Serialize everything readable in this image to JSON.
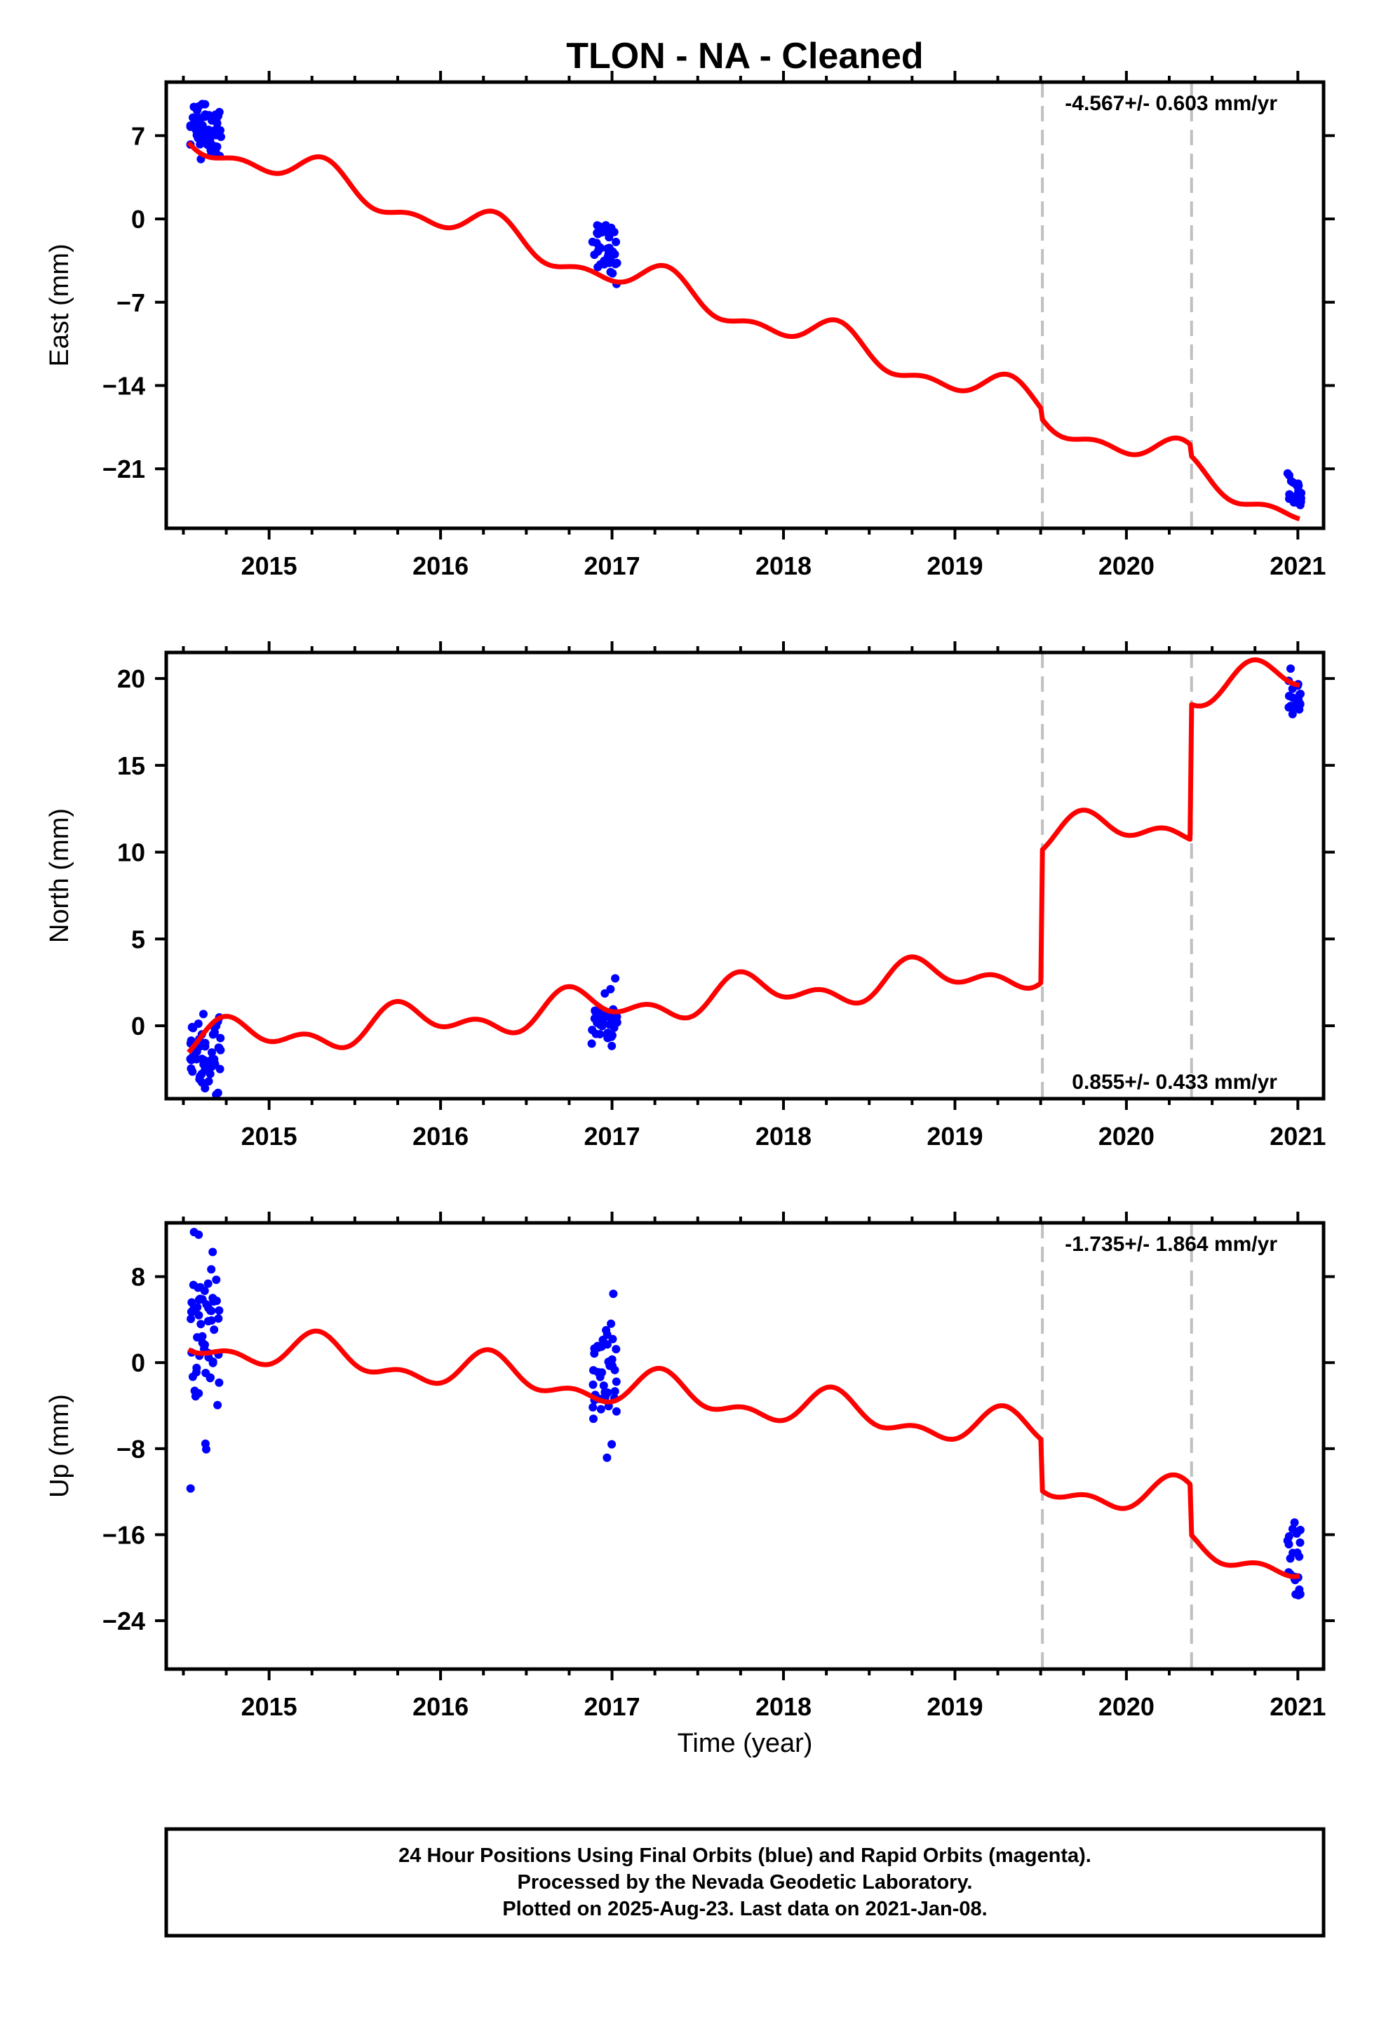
{
  "figure": {
    "title": "TLON  - NA - Cleaned",
    "x_label": "Time (year)",
    "footer": [
      "24 Hour Positions Using Final Orbits (blue) and Rapid Orbits (magenta).",
      "Processed by the Nevada Geodetic Laboratory.",
      "Plotted on 2025-Aug-23. Last data on 2021-Jan-08."
    ]
  },
  "colors": {
    "data_points": "#0000ff",
    "model_line": "#ff0000",
    "event_lines": "#c0c0c0",
    "axes": "#000000"
  },
  "chart_data": [
    {
      "type": "scatter",
      "ylabel": "East (mm)",
      "xlim": [
        2014.4,
        2021.15
      ],
      "ylim": [
        -26.0,
        11.5
      ],
      "yticks": [
        7,
        0,
        -7,
        -14,
        -21
      ],
      "xticks": [
        2015,
        2016,
        2017,
        2018,
        2019,
        2020,
        2021
      ],
      "rate": "-4.567+/- 0.603 mm/yr",
      "rate_position": "top-right",
      "grid": false,
      "event_lines": [
        2019.51,
        2020.38
      ],
      "model": {
        "name": "",
        "rate": -4.567,
        "intercept_2014_5": 7.0,
        "annual_amp": 1.2,
        "annual_phase": 0.05,
        "semiannual_amp": 0.7,
        "semiannual_phase": 0.2,
        "offsets": [
          {
            "t": 2019.51,
            "dy": -0.8
          },
          {
            "t": 2020.38,
            "dy": -0.9
          }
        ]
      },
      "data_clusters": [
        {
          "t_start": 2014.54,
          "t_end": 2014.72,
          "n": 55,
          "center": 7.8,
          "spread": 1.6
        },
        {
          "t_start": 2016.88,
          "t_end": 2017.03,
          "n": 40,
          "center": -2.6,
          "spread": 1.5
        },
        {
          "t_start": 2020.94,
          "t_end": 2021.02,
          "n": 20,
          "center": -23.0,
          "spread": 0.9
        }
      ]
    },
    {
      "type": "scatter",
      "ylabel": "North (mm)",
      "xlim": [
        2014.4,
        2021.15
      ],
      "ylim": [
        -4.2,
        21.5
      ],
      "yticks": [
        20,
        15,
        10,
        5,
        0
      ],
      "xticks": [
        2015,
        2016,
        2017,
        2018,
        2019,
        2020,
        2021
      ],
      "rate": "0.855+/- 0.433 mm/yr",
      "rate_position": "bottom-right",
      "grid": false,
      "event_lines": [
        2019.51,
        2020.38
      ],
      "model": {
        "name": "",
        "rate": 0.855,
        "intercept_2014_5": -1.0,
        "annual_amp": 0.8,
        "annual_phase": 0.55,
        "semiannual_amp": 0.6,
        "semiannual_phase": 0.1,
        "offsets": [
          {
            "t": 2019.51,
            "dy": 7.6
          },
          {
            "t": 2020.38,
            "dy": 7.8
          }
        ]
      },
      "data_clusters": [
        {
          "t_start": 2014.54,
          "t_end": 2014.72,
          "n": 55,
          "center": -1.6,
          "spread": 1.4
        },
        {
          "t_start": 2016.88,
          "t_end": 2017.03,
          "n": 40,
          "center": 0.3,
          "spread": 1.1
        },
        {
          "t_start": 2020.94,
          "t_end": 2021.02,
          "n": 20,
          "center": 19.0,
          "spread": 0.8
        }
      ]
    },
    {
      "type": "scatter",
      "ylabel": "Up (mm)",
      "xlim": [
        2014.4,
        2021.15
      ],
      "ylim": [
        -28.5,
        13.0
      ],
      "yticks": [
        8,
        0,
        -8,
        -16,
        -24
      ],
      "xticks": [
        2015,
        2016,
        2017,
        2018,
        2019,
        2020,
        2021
      ],
      "rate": "-1.735+/- 1.864 mm/yr",
      "rate_position": "top-right",
      "grid": false,
      "event_lines": [
        2019.51,
        2020.38
      ],
      "model": {
        "name": "",
        "rate": -1.735,
        "intercept_2014_5": 2.0,
        "annual_amp": 1.4,
        "annual_phase": 0.05,
        "semiannual_amp": 0.9,
        "semiannual_phase": 0.15,
        "offsets": [
          {
            "t": 2019.51,
            "dy": -4.7
          },
          {
            "t": 2020.38,
            "dy": -4.6
          }
        ]
      },
      "data_clusters": [
        {
          "t_start": 2014.54,
          "t_end": 2014.72,
          "n": 60,
          "center": 2.5,
          "spread": 5.5
        },
        {
          "t_start": 2016.88,
          "t_end": 2017.03,
          "n": 40,
          "center": -1.0,
          "spread": 3.6
        },
        {
          "t_start": 2020.94,
          "t_end": 2021.02,
          "n": 22,
          "center": -19.0,
          "spread": 3.2
        }
      ]
    }
  ]
}
